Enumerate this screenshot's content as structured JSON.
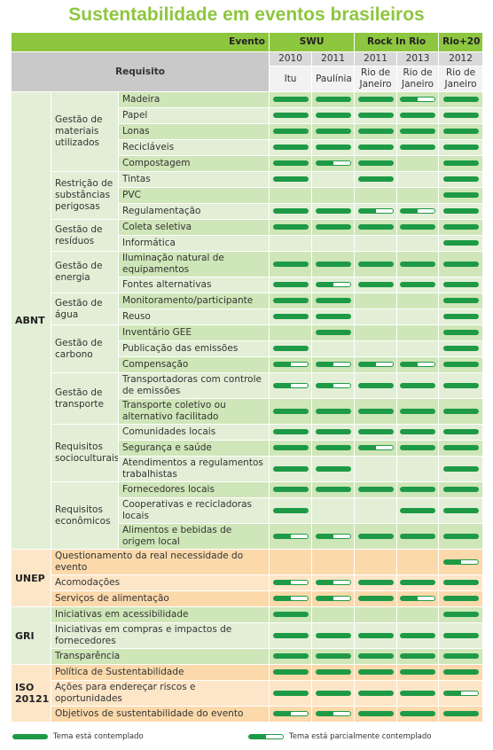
{
  "header": {
    "title": "Sustentabilidade em eventos brasileiros",
    "event_label": "Evento",
    "requirement_label": "Requisito"
  },
  "events": [
    {
      "name": "SWU",
      "editions": [
        {
          "year": "2010",
          "place": "Itu"
        },
        {
          "year": "2011",
          "place": "Paulínia"
        }
      ]
    },
    {
      "name": "Rock In Rio",
      "editions": [
        {
          "year": "2011",
          "place": "Rio de Janeiro"
        },
        {
          "year": "2013",
          "place": "Rio de Janeiro"
        }
      ]
    },
    {
      "name": "Rio+20",
      "editions": [
        {
          "year": "2012",
          "place": "Rio de Janeiro"
        }
      ]
    }
  ],
  "groups": [
    {
      "name": "ABNT",
      "color": "#e2efd6",
      "alt_color": "#cfe6b8",
      "subgroups": [
        {
          "name": "Gestão de materiais utilizados",
          "items": [
            {
              "label": "Madeira",
              "status": [
                "full",
                "full",
                "full",
                "partial",
                "full"
              ]
            },
            {
              "label": "Papel",
              "status": [
                "full",
                "full",
                "full",
                "full",
                "full"
              ]
            },
            {
              "label": "Lonas",
              "status": [
                "full",
                "full",
                "full",
                "full",
                "full"
              ]
            },
            {
              "label": "Recicláveis",
              "status": [
                "full",
                "full",
                "full",
                "full",
                "full"
              ]
            },
            {
              "label": "Compostagem",
              "status": [
                "full",
                "partial",
                "full",
                null,
                "full"
              ]
            }
          ]
        },
        {
          "name": "Restrição de substâncias perigosas",
          "items": [
            {
              "label": "Tintas",
              "status": [
                "full",
                null,
                "full",
                null,
                "full"
              ]
            },
            {
              "label": "PVC",
              "status": [
                null,
                null,
                null,
                null,
                "full"
              ]
            },
            {
              "label": "Regulamentação",
              "status": [
                "full",
                "full",
                "partial",
                "partial",
                "full"
              ]
            }
          ]
        },
        {
          "name": "Gestão de resíduos",
          "items": [
            {
              "label": "Coleta seletiva",
              "status": [
                "full",
                "full",
                "full",
                "full",
                "full"
              ]
            },
            {
              "label": "Informática",
              "status": [
                null,
                null,
                null,
                null,
                "full"
              ]
            }
          ]
        },
        {
          "name": "Gestão de energia",
          "items": [
            {
              "label": "Iluminação natural de equipamentos",
              "status": [
                "full",
                "full",
                "full",
                "full",
                "full"
              ]
            },
            {
              "label": "Fontes alternativas",
              "status": [
                "full",
                "partial",
                "full",
                "full",
                "full"
              ]
            }
          ]
        },
        {
          "name": "Gestão de água",
          "items": [
            {
              "label": "Monitoramento/participante",
              "status": [
                "full",
                "full",
                null,
                null,
                "full"
              ]
            },
            {
              "label": "Reuso",
              "status": [
                "full",
                "full",
                null,
                null,
                "full"
              ]
            }
          ]
        },
        {
          "name": "Gestão de carbono",
          "items": [
            {
              "label": "Inventário GEE",
              "status": [
                null,
                "full",
                null,
                null,
                "full"
              ]
            },
            {
              "label": "Publicação das emissões",
              "status": [
                "full",
                null,
                null,
                null,
                "full"
              ]
            },
            {
              "label": "Compensação",
              "status": [
                "partial",
                "partial",
                "partial",
                "partial",
                "full"
              ]
            }
          ]
        },
        {
          "name": "Gestão de transporte",
          "items": [
            {
              "label": "Transportadoras com controle de emissões",
              "status": [
                "partial",
                "partial",
                "full",
                "full",
                "full"
              ]
            },
            {
              "label": "Transporte coletivo ou alternativo facilitado",
              "status": [
                "full",
                "full",
                "full",
                "full",
                "full"
              ]
            }
          ]
        },
        {
          "name": "Requisitos socioculturais",
          "items": [
            {
              "label": "Comunidades locais",
              "status": [
                "full",
                "full",
                "full",
                "full",
                "full"
              ]
            },
            {
              "label": "Segurança e saúde",
              "status": [
                "full",
                "full",
                "partial",
                "full",
                "full"
              ]
            },
            {
              "label": "Atendimentos a regulamentos trabalhistas",
              "status": [
                "full",
                "full",
                null,
                null,
                "full"
              ]
            }
          ]
        },
        {
          "name": "Requisitos econômicos",
          "items": [
            {
              "label": "Fornecedores locais",
              "status": [
                "full",
                "full",
                "full",
                "full",
                "full"
              ]
            },
            {
              "label": "Cooperativas e recicladoras locais",
              "status": [
                "full",
                null,
                null,
                "full",
                "full"
              ]
            },
            {
              "label": "Alimentos e bebidas de origem local",
              "status": [
                "partial",
                "partial",
                "full",
                "full",
                "full"
              ]
            }
          ]
        }
      ]
    },
    {
      "name": "UNEP",
      "color": "#fde6c8",
      "alt_color": "#fbd9ab",
      "items": [
        {
          "label": "Questionamento da real necessidade do evento",
          "status": [
            null,
            null,
            null,
            null,
            "partial"
          ]
        },
        {
          "label": "Acomodações",
          "status": [
            "partial",
            "partial",
            "full",
            "full",
            "full"
          ]
        },
        {
          "label": "Serviços de alimentação",
          "status": [
            "partial",
            "partial",
            "full",
            "partial",
            "full"
          ]
        }
      ]
    },
    {
      "name": "GRI",
      "color": "#e2efd6",
      "alt_color": "#cfe6b8",
      "items": [
        {
          "label": "Iniciativas em acessibilidade",
          "status": [
            "full",
            null,
            null,
            null,
            "full"
          ]
        },
        {
          "label": "Iniciativas em compras e impactos de fornecedores",
          "status": [
            "full",
            "full",
            "full",
            "full",
            "full"
          ]
        },
        {
          "label": "Transparência",
          "status": [
            "full",
            "full",
            "full",
            "full",
            "full"
          ]
        }
      ]
    },
    {
      "name": "ISO 20121",
      "color": "#fde6c8",
      "alt_color": "#fbd9ab",
      "items": [
        {
          "label": "Política de Sustentabilidade",
          "status": [
            "full",
            "full",
            "full",
            "full",
            "full"
          ]
        },
        {
          "label": "Ações para endereçar riscos e oportunidades",
          "status": [
            "full",
            "full",
            "full",
            "full",
            "partial"
          ]
        },
        {
          "label": "Objetivos de sustentabilidade do evento",
          "status": [
            "partial",
            "partial",
            "full",
            "full",
            "full"
          ]
        }
      ]
    }
  ],
  "legend": {
    "full": "Tema está contemplado",
    "partial": "Tema está parcialmente contemplado"
  }
}
